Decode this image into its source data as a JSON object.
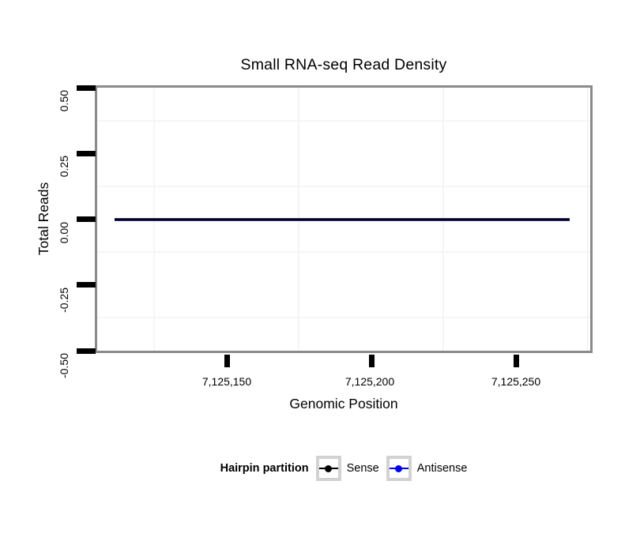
{
  "title": "Small RNA-seq Read Density",
  "y_axis": {
    "label": "Total Reads",
    "ticks": [
      "0.50",
      "0.25",
      "0.00",
      "-0.25",
      "-0.50"
    ]
  },
  "x_axis": {
    "label": "Genomic Position",
    "ticks": [
      "7,125,150",
      "7,125,200",
      "7,125,250"
    ]
  },
  "legend": {
    "title": "Hairpin partition",
    "items": [
      {
        "label": "Sense",
        "color": "#000000"
      },
      {
        "label": "Antisense",
        "color": "#0000EE"
      }
    ]
  },
  "colors": {
    "panel_border": "#8A8A8A",
    "axis_tick": "#000000",
    "grid_minor": "#F5F5F5",
    "legend_key_border": "#D2D2D2",
    "data_line_blend": "#1A1A50"
  },
  "chart_data": {
    "type": "line",
    "title": "Small RNA-seq Read Density",
    "xlabel": "Genomic Position",
    "ylabel": "Total Reads",
    "xlim": [
      7125107,
      7125277
    ],
    "ylim": [
      -0.5,
      0.5
    ],
    "x_ticks": [
      7125150,
      7125200,
      7125250
    ],
    "y_ticks": [
      0.5,
      0.25,
      0.0,
      -0.25,
      -0.5
    ],
    "grid": "minor gridlines only, very light gray; white panel background",
    "legend_position": "bottom",
    "legend_title": "Hairpin partition",
    "series": [
      {
        "name": "Sense",
        "color": "#000000",
        "x": [
          7125111,
          7125268
        ],
        "values": [
          0,
          0
        ]
      },
      {
        "name": "Antisense",
        "color": "#0000EE",
        "x": [
          7125111,
          7125268
        ],
        "values": [
          0,
          0
        ]
      }
    ],
    "note": "Both series are constant at 0 total reads across the full genomic range, drawn overlapping at y=0"
  }
}
